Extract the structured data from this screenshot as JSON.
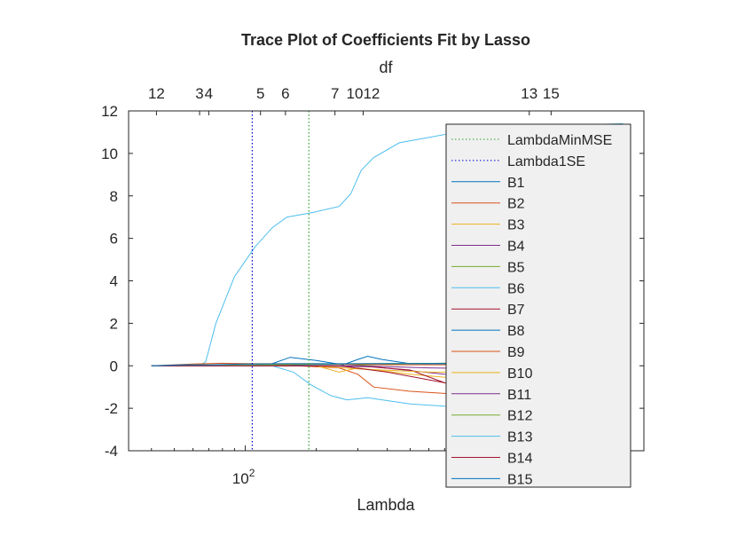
{
  "chart_data": {
    "type": "line",
    "title": "Trace Plot of Coefficients Fit by Lasso",
    "xlabel": "Lambda",
    "x_scale": "log",
    "x_tick_label": {
      "base": "10",
      "exponent": "2"
    },
    "top_axis": {
      "label": "df",
      "ticks": [
        {
          "text": "12",
          "lambda": 42
        },
        {
          "text": "3",
          "lambda": 64
        },
        {
          "text": "4",
          "lambda": 70
        },
        {
          "text": "5",
          "lambda": 116
        },
        {
          "text": "6",
          "lambda": 148
        },
        {
          "text": "7",
          "lambda": 240
        },
        {
          "text": "1012",
          "lambda": 316
        },
        {
          "text": "13",
          "lambda": 1600
        },
        {
          "text": "15",
          "lambda": 1980
        }
      ]
    },
    "xlim": [
      32,
      4900
    ],
    "ylim": [
      -4,
      12
    ],
    "yticks": [
      "-4",
      "-2",
      "0",
      "2",
      "4",
      "6",
      "8",
      "10",
      "12"
    ],
    "grid": false,
    "legend_position": "right-inside",
    "vlines": [
      {
        "name": "LambdaMinMSE",
        "lambda": 186,
        "color": "#2ca02c",
        "style": "dotted"
      },
      {
        "name": "Lambda1SE",
        "lambda": 107,
        "color": "#0000cc",
        "style": "dotted"
      }
    ],
    "series": [
      {
        "name": "B1",
        "color": "#0072bd",
        "points": [
          [
            40,
            0
          ],
          [
            70,
            0.02
          ],
          [
            150,
            0.05
          ],
          [
            300,
            0.08
          ],
          [
            700,
            0.1
          ],
          [
            2000,
            0.12
          ],
          [
            4000,
            0.13
          ]
        ]
      },
      {
        "name": "B2",
        "color": "#d95319",
        "points": [
          [
            40,
            0
          ],
          [
            70,
            0.05
          ],
          [
            150,
            0.02
          ],
          [
            250,
            -0.1
          ],
          [
            300,
            -0.4
          ],
          [
            350,
            -1.0
          ],
          [
            500,
            -1.2
          ],
          [
            700,
            -1.3
          ],
          [
            2000,
            -1.5
          ],
          [
            4000,
            -1.6
          ]
        ]
      },
      {
        "name": "B3",
        "color": "#edb120",
        "points": [
          [
            40,
            0
          ],
          [
            70,
            0.05
          ],
          [
            200,
            0
          ],
          [
            250,
            -0.3
          ],
          [
            300,
            -0.1
          ],
          [
            500,
            -0.4
          ],
          [
            800,
            -0.6
          ],
          [
            2000,
            -0.8
          ],
          [
            4000,
            -0.9
          ]
        ]
      },
      {
        "name": "B4",
        "color": "#7e2f8e",
        "points": [
          [
            40,
            0
          ],
          [
            200,
            0
          ],
          [
            350,
            -0.05
          ],
          [
            700,
            -0.4
          ],
          [
            2000,
            -0.6
          ],
          [
            4000,
            -0.7
          ]
        ]
      },
      {
        "name": "B5",
        "color": "#77ac30",
        "points": [
          [
            40,
            0
          ],
          [
            250,
            0
          ],
          [
            500,
            0.1
          ],
          [
            2000,
            0.2
          ],
          [
            4000,
            0.25
          ]
        ]
      },
      {
        "name": "B6",
        "color": "#4dbeee",
        "points": [
          [
            40,
            0
          ],
          [
            64,
            0
          ],
          [
            68,
            0.2
          ],
          [
            75,
            2.0
          ],
          [
            90,
            4.2
          ],
          [
            110,
            5.6
          ],
          [
            130,
            6.5
          ],
          [
            150,
            7.0
          ],
          [
            190,
            7.2
          ],
          [
            250,
            7.5
          ],
          [
            280,
            8.1
          ],
          [
            310,
            9.2
          ],
          [
            350,
            9.8
          ],
          [
            450,
            10.5
          ],
          [
            800,
            11.0
          ],
          [
            2000,
            11.3
          ],
          [
            4000,
            11.4
          ]
        ]
      },
      {
        "name": "B7",
        "color": "#a2142f",
        "points": [
          [
            40,
            0
          ],
          [
            300,
            0
          ],
          [
            500,
            -0.2
          ],
          [
            700,
            -0.8
          ],
          [
            1000,
            -1.1
          ],
          [
            2000,
            -1.3
          ],
          [
            4000,
            -1.4
          ]
        ]
      },
      {
        "name": "B8",
        "color": "#0072bd",
        "points": [
          [
            40,
            0
          ],
          [
            110,
            0.02
          ],
          [
            130,
            0.1
          ],
          [
            155,
            0.4
          ],
          [
            200,
            0.25
          ],
          [
            260,
            0.05
          ],
          [
            300,
            0.3
          ],
          [
            330,
            0.45
          ],
          [
            380,
            0.3
          ],
          [
            500,
            0.1
          ],
          [
            2000,
            0.1
          ],
          [
            4000,
            0.1
          ]
        ]
      },
      {
        "name": "B9",
        "color": "#d95319",
        "points": [
          [
            40,
            0
          ],
          [
            60,
            0.08
          ],
          [
            80,
            0.12
          ],
          [
            110,
            0.1
          ],
          [
            200,
            0.1
          ],
          [
            400,
            0.05
          ],
          [
            2000,
            0.05
          ],
          [
            4000,
            0.05
          ]
        ]
      },
      {
        "name": "B10",
        "color": "#edb120",
        "points": [
          [
            40,
            0
          ],
          [
            200,
            0
          ],
          [
            300,
            -0.15
          ],
          [
            600,
            -0.3
          ],
          [
            2000,
            -0.3
          ],
          [
            4000,
            -0.35
          ]
        ]
      },
      {
        "name": "B11",
        "color": "#7e2f8e",
        "points": [
          [
            40,
            0
          ],
          [
            300,
            0
          ],
          [
            600,
            -0.1
          ],
          [
            2000,
            -0.2
          ],
          [
            4000,
            -0.2
          ]
        ]
      },
      {
        "name": "B12",
        "color": "#77ac30",
        "points": [
          [
            40,
            0
          ],
          [
            110,
            0.05
          ],
          [
            300,
            0.1
          ],
          [
            2000,
            0.15
          ],
          [
            4000,
            0.15
          ]
        ]
      },
      {
        "name": "B13",
        "color": "#4dbeee",
        "points": [
          [
            40,
            0
          ],
          [
            130,
            0
          ],
          [
            160,
            -0.3
          ],
          [
            190,
            -0.9
          ],
          [
            230,
            -1.4
          ],
          [
            270,
            -1.6
          ],
          [
            330,
            -1.5
          ],
          [
            380,
            -1.6
          ],
          [
            500,
            -1.8
          ],
          [
            700,
            -1.9
          ],
          [
            2000,
            -2.0
          ],
          [
            4000,
            -2.1
          ]
        ]
      },
      {
        "name": "B14",
        "color": "#a2142f",
        "points": [
          [
            40,
            0
          ],
          [
            250,
            0
          ],
          [
            400,
            -0.3
          ],
          [
            700,
            -0.8
          ],
          [
            2000,
            -1.2
          ],
          [
            4000,
            -1.3
          ]
        ]
      },
      {
        "name": "B15",
        "color": "#0072bd",
        "points": [
          [
            40,
            0
          ],
          [
            55,
            0.05
          ],
          [
            70,
            0.05
          ],
          [
            100,
            0.08
          ],
          [
            150,
            0.1
          ],
          [
            300,
            0.1
          ],
          [
            2000,
            0.12
          ],
          [
            4000,
            0.12
          ]
        ]
      }
    ]
  }
}
